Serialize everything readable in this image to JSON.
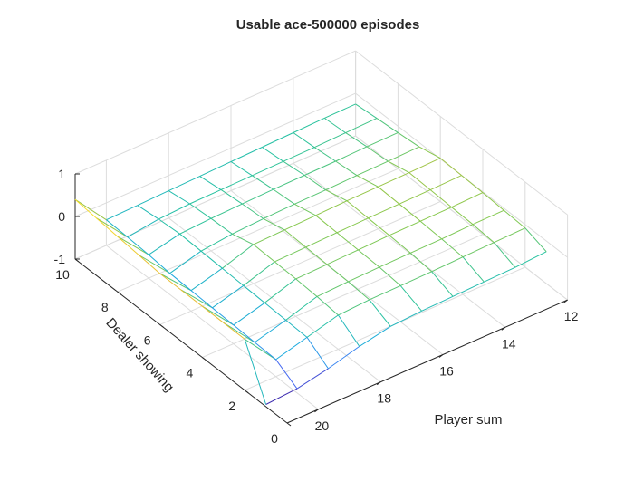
{
  "chart_data": {
    "type": "surface",
    "title": "Usable ace-500000 episodes",
    "xlabel": "Player sum",
    "ylabel": "Dealer showing",
    "zlabel": "",
    "xlim": [
      12,
      21
    ],
    "ylim": [
      0,
      10
    ],
    "zlim": [
      -1,
      1
    ],
    "xticks": [
      12,
      14,
      16,
      18,
      20
    ],
    "yticks": [
      0,
      2,
      4,
      6,
      8,
      10
    ],
    "zticks": [
      -1,
      0,
      1
    ],
    "grid": true,
    "colormap": "parula",
    "colormap_colors": [
      "#3e26a8",
      "#4772fa",
      "#1caadf",
      "#26c2a0",
      "#86c84d",
      "#e6b832",
      "#f9e42c"
    ],
    "player_sum": [
      12,
      13,
      14,
      15,
      16,
      17,
      18,
      19,
      20,
      21
    ],
    "dealer_showing": [
      1,
      2,
      3,
      4,
      5,
      6,
      7,
      8,
      9,
      10
    ],
    "values": [
      [
        -0.25,
        -0.3,
        -0.32,
        -0.34,
        -0.36,
        -0.4,
        -0.55,
        -0.75,
        -0.9,
        -0.95
      ],
      [
        -0.08,
        -0.1,
        -0.12,
        -0.14,
        -0.15,
        -0.16,
        -0.2,
        -0.4,
        -0.6,
        0.2
      ],
      [
        -0.05,
        -0.06,
        -0.08,
        -0.09,
        -0.1,
        -0.12,
        -0.15,
        -0.38,
        -0.58,
        0.2
      ],
      [
        -0.02,
        -0.04,
        -0.05,
        -0.06,
        -0.08,
        -0.1,
        -0.12,
        -0.36,
        -0.56,
        0.2
      ],
      [
        0.0,
        -0.02,
        -0.03,
        -0.04,
        -0.06,
        -0.08,
        -0.1,
        -0.34,
        -0.54,
        0.2
      ],
      [
        0.02,
        0.0,
        -0.01,
        -0.02,
        -0.04,
        -0.06,
        -0.08,
        -0.32,
        -0.52,
        0.2
      ],
      [
        -0.1,
        -0.12,
        -0.13,
        -0.15,
        -0.16,
        -0.18,
        -0.22,
        -0.3,
        -0.5,
        0.25
      ],
      [
        -0.15,
        -0.16,
        -0.18,
        -0.19,
        -0.2,
        -0.22,
        -0.24,
        -0.28,
        -0.45,
        0.3
      ],
      [
        -0.2,
        -0.22,
        -0.24,
        -0.25,
        -0.26,
        -0.27,
        -0.28,
        -0.32,
        -0.42,
        0.35
      ],
      [
        -0.25,
        -0.26,
        -0.28,
        -0.3,
        -0.32,
        -0.34,
        -0.36,
        -0.38,
        -0.4,
        0.4
      ]
    ]
  }
}
